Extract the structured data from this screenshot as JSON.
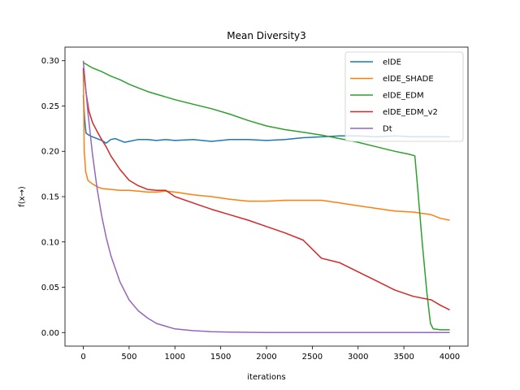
{
  "chart_data": {
    "type": "line",
    "title": "Mean Diversity3",
    "xlabel": "iterations",
    "ylabel": "f(x→)",
    "xlim": [
      -200,
      4200
    ],
    "ylim": [
      -0.015,
      0.315
    ],
    "x_ticks": [
      0,
      500,
      1000,
      1500,
      2000,
      2500,
      3000,
      3500,
      4000
    ],
    "y_ticks": [
      0.0,
      0.05,
      0.1,
      0.15,
      0.2,
      0.25,
      0.3
    ],
    "grid": false,
    "legend_position": "top-right",
    "series": [
      {
        "name": "elDE",
        "color": "#1f77b4",
        "points": [
          [
            0,
            0.262
          ],
          [
            15,
            0.235
          ],
          [
            30,
            0.22
          ],
          [
            60,
            0.218
          ],
          [
            100,
            0.216
          ],
          [
            150,
            0.214
          ],
          [
            200,
            0.212
          ],
          [
            250,
            0.209
          ],
          [
            300,
            0.213
          ],
          [
            350,
            0.214
          ],
          [
            400,
            0.212
          ],
          [
            450,
            0.21
          ],
          [
            500,
            0.211
          ],
          [
            600,
            0.213
          ],
          [
            700,
            0.213
          ],
          [
            800,
            0.212
          ],
          [
            900,
            0.213
          ],
          [
            1000,
            0.212
          ],
          [
            1200,
            0.213
          ],
          [
            1400,
            0.211
          ],
          [
            1600,
            0.213
          ],
          [
            1800,
            0.213
          ],
          [
            2000,
            0.212
          ],
          [
            2200,
            0.213
          ],
          [
            2400,
            0.215
          ],
          [
            2600,
            0.216
          ],
          [
            2800,
            0.217
          ],
          [
            3000,
            0.217
          ],
          [
            3200,
            0.216
          ],
          [
            3400,
            0.217
          ],
          [
            3600,
            0.216
          ],
          [
            3800,
            0.216
          ],
          [
            4000,
            0.216
          ]
        ]
      },
      {
        "name": "elDE_SHADE",
        "color": "#ff7f0e",
        "points": [
          [
            0,
            0.29
          ],
          [
            10,
            0.2
          ],
          [
            25,
            0.178
          ],
          [
            50,
            0.168
          ],
          [
            100,
            0.164
          ],
          [
            150,
            0.161
          ],
          [
            200,
            0.159
          ],
          [
            300,
            0.158
          ],
          [
            400,
            0.157
          ],
          [
            500,
            0.157
          ],
          [
            600,
            0.156
          ],
          [
            700,
            0.155
          ],
          [
            800,
            0.155
          ],
          [
            900,
            0.156
          ],
          [
            1000,
            0.155
          ],
          [
            1200,
            0.152
          ],
          [
            1400,
            0.15
          ],
          [
            1600,
            0.147
          ],
          [
            1800,
            0.145
          ],
          [
            2000,
            0.145
          ],
          [
            2200,
            0.146
          ],
          [
            2400,
            0.146
          ],
          [
            2600,
            0.146
          ],
          [
            2800,
            0.143
          ],
          [
            3000,
            0.14
          ],
          [
            3200,
            0.137
          ],
          [
            3400,
            0.134
          ],
          [
            3600,
            0.133
          ],
          [
            3800,
            0.13
          ],
          [
            3900,
            0.126
          ],
          [
            4000,
            0.124
          ]
        ]
      },
      {
        "name": "elDE_EDM",
        "color": "#2ca02c",
        "points": [
          [
            0,
            0.298
          ],
          [
            100,
            0.292
          ],
          [
            200,
            0.288
          ],
          [
            300,
            0.283
          ],
          [
            400,
            0.279
          ],
          [
            500,
            0.274
          ],
          [
            600,
            0.27
          ],
          [
            700,
            0.266
          ],
          [
            800,
            0.263
          ],
          [
            900,
            0.26
          ],
          [
            1000,
            0.257
          ],
          [
            1200,
            0.252
          ],
          [
            1400,
            0.247
          ],
          [
            1600,
            0.241
          ],
          [
            1800,
            0.234
          ],
          [
            2000,
            0.228
          ],
          [
            2200,
            0.224
          ],
          [
            2400,
            0.221
          ],
          [
            2600,
            0.218
          ],
          [
            2800,
            0.214
          ],
          [
            3000,
            0.21
          ],
          [
            3200,
            0.205
          ],
          [
            3400,
            0.2
          ],
          [
            3550,
            0.197
          ],
          [
            3620,
            0.195
          ],
          [
            3650,
            0.16
          ],
          [
            3700,
            0.1
          ],
          [
            3750,
            0.045
          ],
          [
            3790,
            0.01
          ],
          [
            3820,
            0.004
          ],
          [
            3900,
            0.003
          ],
          [
            4000,
            0.003
          ]
        ]
      },
      {
        "name": "elDE_EDM_v2",
        "color": "#d62728",
        "points": [
          [
            0,
            0.292
          ],
          [
            30,
            0.265
          ],
          [
            60,
            0.245
          ],
          [
            100,
            0.232
          ],
          [
            150,
            0.222
          ],
          [
            200,
            0.213
          ],
          [
            250,
            0.205
          ],
          [
            300,
            0.195
          ],
          [
            400,
            0.18
          ],
          [
            500,
            0.168
          ],
          [
            600,
            0.162
          ],
          [
            700,
            0.158
          ],
          [
            800,
            0.157
          ],
          [
            900,
            0.157
          ],
          [
            1000,
            0.15
          ],
          [
            1200,
            0.143
          ],
          [
            1400,
            0.136
          ],
          [
            1600,
            0.13
          ],
          [
            1800,
            0.124
          ],
          [
            2000,
            0.117
          ],
          [
            2200,
            0.11
          ],
          [
            2400,
            0.102
          ],
          [
            2600,
            0.082
          ],
          [
            2800,
            0.077
          ],
          [
            3000,
            0.067
          ],
          [
            3200,
            0.057
          ],
          [
            3400,
            0.047
          ],
          [
            3600,
            0.04
          ],
          [
            3800,
            0.036
          ],
          [
            3900,
            0.03
          ],
          [
            4000,
            0.025
          ]
        ]
      },
      {
        "name": "Dt",
        "color": "#9467bd",
        "points": [
          [
            0,
            0.3
          ],
          [
            50,
            0.243
          ],
          [
            100,
            0.197
          ],
          [
            150,
            0.159
          ],
          [
            200,
            0.129
          ],
          [
            250,
            0.105
          ],
          [
            300,
            0.085
          ],
          [
            400,
            0.056
          ],
          [
            500,
            0.036
          ],
          [
            600,
            0.024
          ],
          [
            700,
            0.016
          ],
          [
            800,
            0.01
          ],
          [
            900,
            0.007
          ],
          [
            1000,
            0.004
          ],
          [
            1200,
            0.002
          ],
          [
            1400,
            0.001
          ],
          [
            1600,
            0.0005
          ],
          [
            2000,
            0.0
          ],
          [
            2500,
            0.0
          ],
          [
            3000,
            0.0
          ],
          [
            3500,
            0.0
          ],
          [
            4000,
            0.0
          ]
        ]
      }
    ]
  }
}
